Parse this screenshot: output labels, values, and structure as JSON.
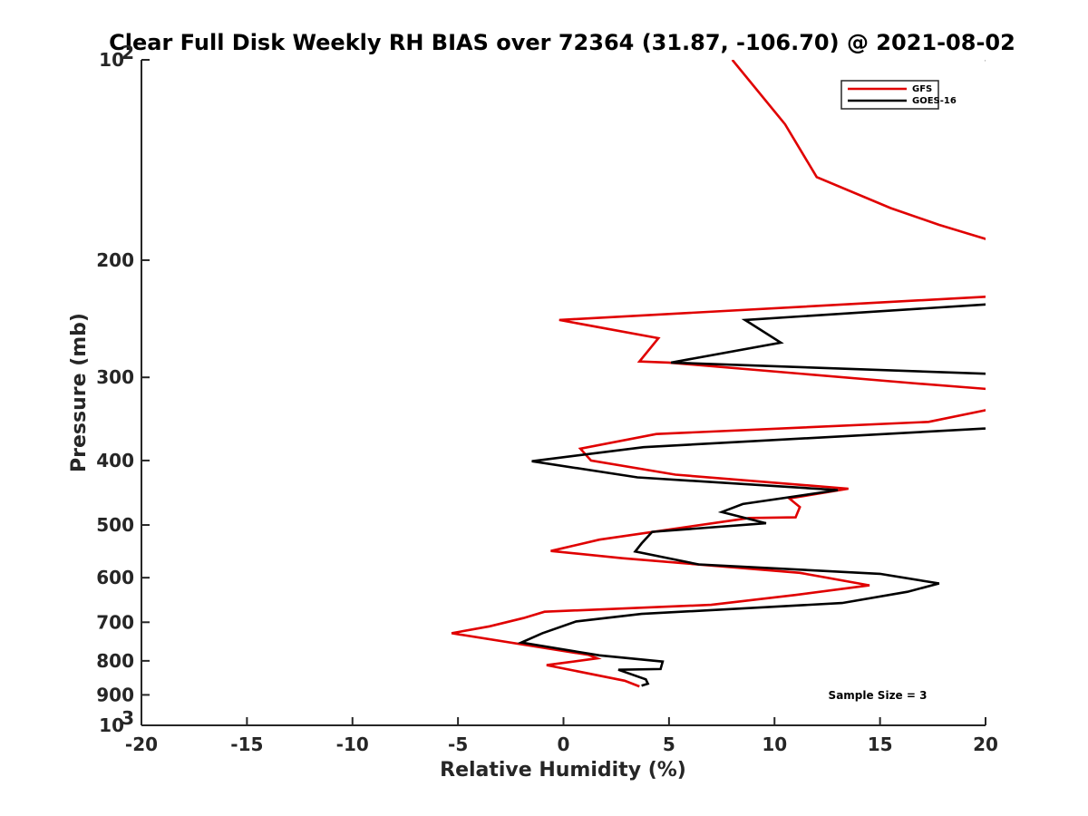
{
  "chart_data": {
    "type": "line",
    "title": "Clear Full Disk Weekly RH BIAS over 72364 (31.87, -106.70) @ 2021-08-02",
    "xlabel": "Relative Humidity (%)",
    "ylabel": "Pressure (mb)",
    "xlim": [
      -20,
      20
    ],
    "ylim": [
      100,
      1000
    ],
    "yscale": "log",
    "y_reversed": true,
    "xticks": [
      -20,
      -15,
      -10,
      -5,
      0,
      5,
      10,
      15,
      20
    ],
    "yticks": [
      {
        "value": 100,
        "label": "10",
        "sup": "2"
      },
      {
        "value": 200,
        "label": "200"
      },
      {
        "value": 300,
        "label": "300"
      },
      {
        "value": 400,
        "label": "400"
      },
      {
        "value": 500,
        "label": "500"
      },
      {
        "value": 600,
        "label": "600"
      },
      {
        "value": 700,
        "label": "700"
      },
      {
        "value": 800,
        "label": "800"
      },
      {
        "value": 900,
        "label": "900"
      },
      {
        "value": 1000,
        "label": "10",
        "sup": "3"
      }
    ],
    "grid": false,
    "legend_position": "top-right",
    "annotation": "Sample Size = 3",
    "series": [
      {
        "name": "GFS",
        "color": "#e00000",
        "points": [
          [
            8.0,
            100
          ],
          [
            10.5,
            125
          ],
          [
            12.0,
            150
          ],
          [
            15.5,
            167
          ],
          [
            17.8,
            177
          ],
          [
            21.0,
            190
          ],
          [
            null,
            null
          ],
          [
            21.0,
            226
          ],
          [
            20.0,
            227
          ],
          [
            -0.2,
            246
          ],
          [
            4.5,
            262
          ],
          [
            3.6,
            284
          ],
          [
            5.0,
            285
          ],
          [
            16.5,
            306
          ],
          [
            21.0,
            314
          ],
          [
            null,
            null
          ],
          [
            21.0,
            331
          ],
          [
            17.3,
            350
          ],
          [
            4.4,
            365
          ],
          [
            0.8,
            384
          ],
          [
            1.3,
            400
          ],
          [
            5.3,
            420
          ],
          [
            13.5,
            441
          ],
          [
            10.7,
            456
          ],
          [
            11.2,
            470
          ],
          [
            11.0,
            487
          ],
          [
            8.8,
            488
          ],
          [
            1.7,
            526
          ],
          [
            -0.6,
            547
          ],
          [
            2.8,
            561
          ],
          [
            11.2,
            590
          ],
          [
            14.5,
            616
          ],
          [
            11.0,
            637
          ],
          [
            7.0,
            659
          ],
          [
            -0.9,
            675
          ],
          [
            -1.9,
            690
          ],
          [
            -3.5,
            710
          ],
          [
            -5.3,
            727
          ],
          [
            1.2,
            784
          ],
          [
            1.6,
            793
          ],
          [
            -0.8,
            812
          ],
          [
            2.9,
            857
          ],
          [
            3.6,
            874
          ]
        ]
      },
      {
        "name": "GOES-16",
        "color": "#000000",
        "points": [
          [
            20.0,
            100
          ],
          [
            21.0,
            104
          ],
          [
            null,
            null
          ],
          [
            21.0,
            232
          ],
          [
            8.6,
            246
          ],
          [
            10.3,
            266
          ],
          [
            5.1,
            285
          ],
          [
            21.0,
            297
          ],
          [
            null,
            null
          ],
          [
            21.0,
            355
          ],
          [
            20.0,
            358
          ],
          [
            3.8,
            382
          ],
          [
            -1.5,
            401
          ],
          [
            3.5,
            424
          ],
          [
            13.0,
            443
          ],
          [
            8.5,
            465
          ],
          [
            7.5,
            478
          ],
          [
            9.6,
            497
          ],
          [
            4.2,
            512
          ],
          [
            3.7,
            533
          ],
          [
            3.4,
            548
          ],
          [
            6.4,
            573
          ],
          [
            15.0,
            592
          ],
          [
            17.8,
            612
          ],
          [
            16.3,
            630
          ],
          [
            13.2,
            655
          ],
          [
            3.7,
            680
          ],
          [
            0.6,
            698
          ],
          [
            -1.0,
            727
          ],
          [
            -2.0,
            751
          ],
          [
            1.7,
            785
          ],
          [
            4.7,
            802
          ],
          [
            4.6,
            823
          ],
          [
            2.6,
            825
          ],
          [
            3.9,
            853
          ],
          [
            4.0,
            866
          ],
          [
            3.7,
            872
          ]
        ]
      }
    ]
  }
}
